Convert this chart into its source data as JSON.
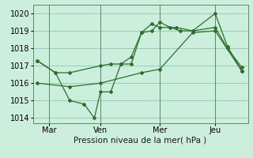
{
  "background_color": "#cceedd",
  "grid_color": "#99ccbb",
  "line_color": "#2d6e2d",
  "title": "Pression niveau de la mer( hPa )",
  "ylabel_ticks": [
    1014,
    1015,
    1016,
    1017,
    1018,
    1019,
    1020
  ],
  "ylim": [
    1013.7,
    1020.5
  ],
  "xlim": [
    0.0,
    10.5
  ],
  "xtick_positions": [
    0.8,
    3.3,
    6.2,
    8.9
  ],
  "xtick_labels": [
    "Mar",
    "Ven",
    "Mer",
    "Jeu"
  ],
  "vline_positions": [
    0.8,
    3.3,
    6.2,
    8.9
  ],
  "series1": {
    "x": [
      0.2,
      1.1,
      1.8,
      3.3,
      3.8,
      4.3,
      4.8,
      5.3,
      5.8,
      6.2,
      6.7,
      7.2,
      7.8,
      8.9,
      9.5,
      10.2
    ],
    "y": [
      1017.3,
      1016.6,
      1016.6,
      1017.0,
      1017.1,
      1017.1,
      1017.5,
      1018.9,
      1019.0,
      1019.5,
      1019.2,
      1019.0,
      1019.0,
      1020.0,
      1018.1,
      1016.7
    ]
  },
  "series2": {
    "x": [
      0.2,
      1.1,
      1.8,
      2.5,
      3.0,
      3.3,
      3.8,
      4.3,
      4.8,
      5.3,
      5.8,
      6.2,
      7.0,
      7.8,
      8.9,
      9.5,
      10.2
    ],
    "y": [
      1017.3,
      1016.6,
      1015.0,
      1014.8,
      1014.0,
      1015.5,
      1015.5,
      1017.1,
      1017.1,
      1018.9,
      1019.4,
      1019.2,
      1019.2,
      1019.0,
      1019.2,
      1018.0,
      1016.9
    ]
  },
  "series3": {
    "x": [
      0.2,
      1.8,
      3.3,
      5.3,
      6.2,
      7.8,
      8.9,
      10.2
    ],
    "y": [
      1016.0,
      1015.8,
      1016.0,
      1016.6,
      1016.8,
      1018.9,
      1019.0,
      1016.7
    ]
  }
}
